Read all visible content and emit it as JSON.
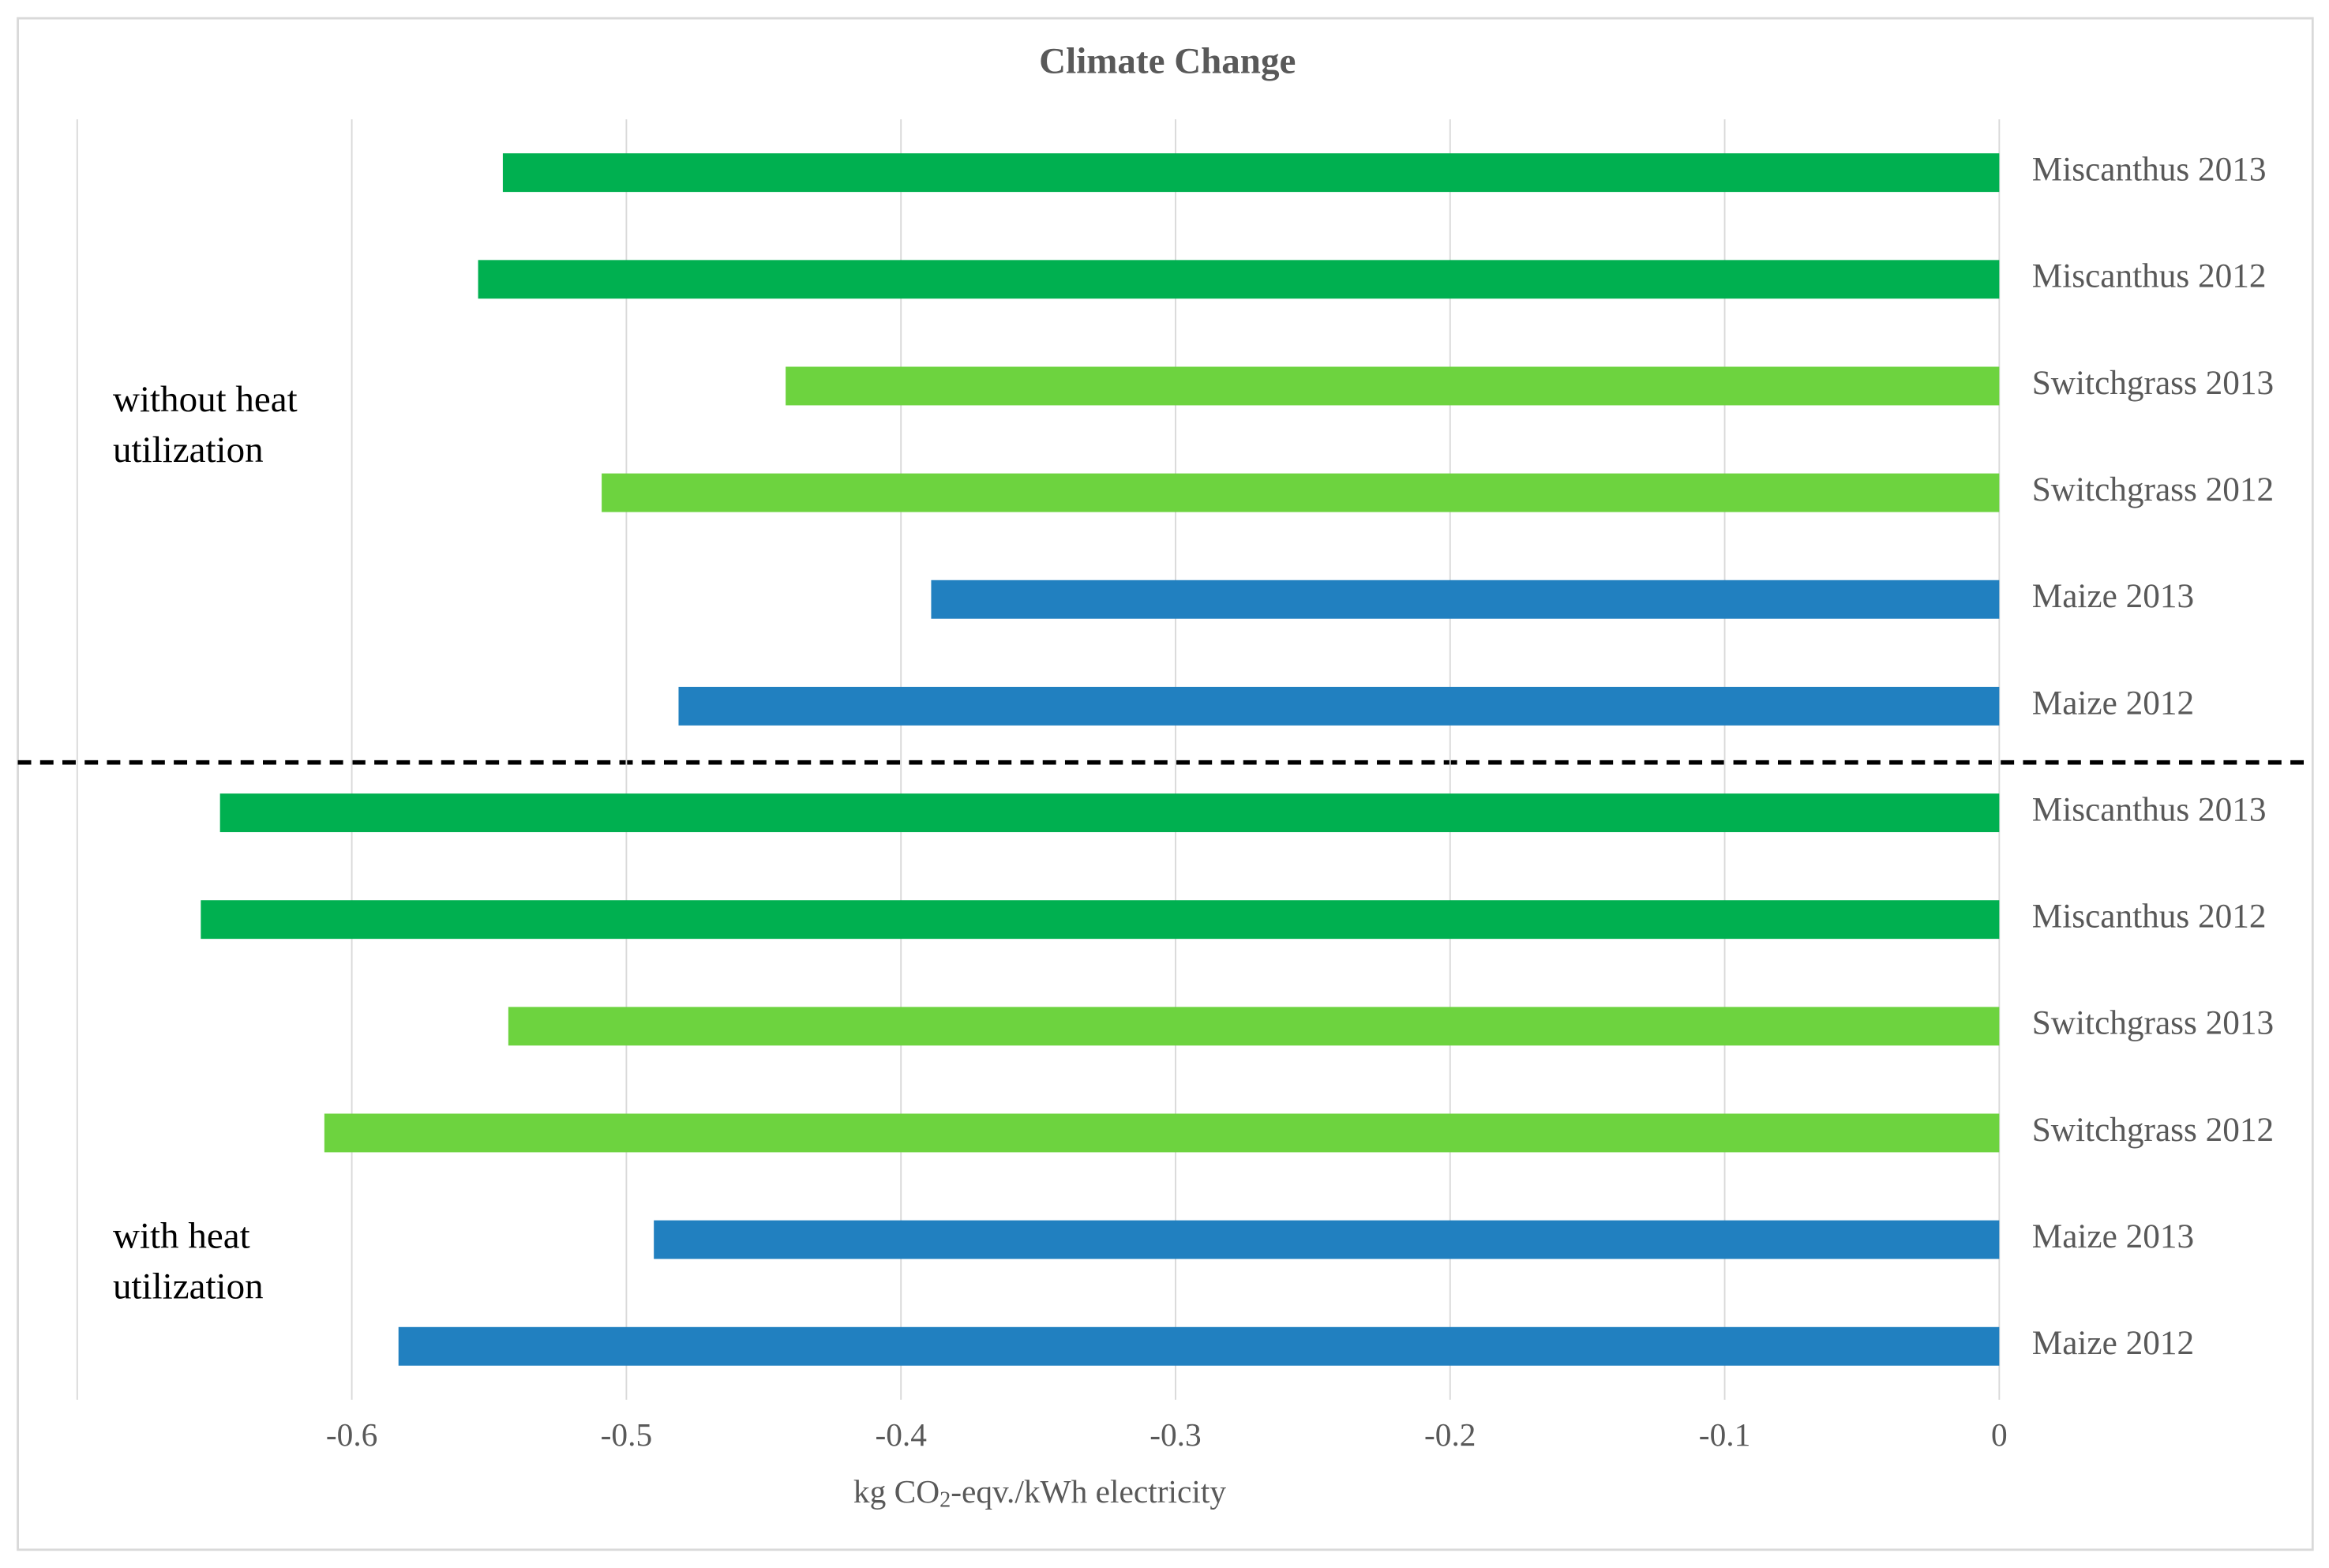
{
  "chart_data": {
    "type": "bar",
    "orientation": "horizontal",
    "title": "Climate Change",
    "x_label": [
      "kg CO",
      "2",
      "-eqv./kWh  electricity"
    ],
    "categories": [
      "Miscanthus 2013",
      "Miscanthus 2012",
      "Switchgrass 2013",
      "Switchgrass 2012",
      "Maize 2013",
      "Maize 2012",
      "Miscanthus 2013",
      "Miscanthus 2012",
      "Switchgrass 2013",
      "Switchgrass 2012",
      "Maize 2013",
      "Maize 2012"
    ],
    "values": [
      -0.545,
      -0.554,
      -0.442,
      -0.509,
      -0.389,
      -0.481,
      -0.648,
      -0.655,
      -0.543,
      -0.61,
      -0.49,
      -0.583
    ],
    "colors": [
      "#00b050",
      "#00b050",
      "#6dd33f",
      "#6dd33f",
      "#2180c0",
      "#2180c0",
      "#00b050",
      "#00b050",
      "#6dd33f",
      "#6dd33f",
      "#2180c0",
      "#2180c0"
    ],
    "annotations": [
      [
        "without heat",
        "utilization"
      ],
      [
        "with heat",
        "utilization"
      ]
    ],
    "xlim": [
      -0.7,
      0
    ],
    "xticks": [
      -0.6,
      -0.5,
      -0.4,
      -0.3,
      -0.2,
      -0.1,
      0
    ],
    "grid": true
  }
}
